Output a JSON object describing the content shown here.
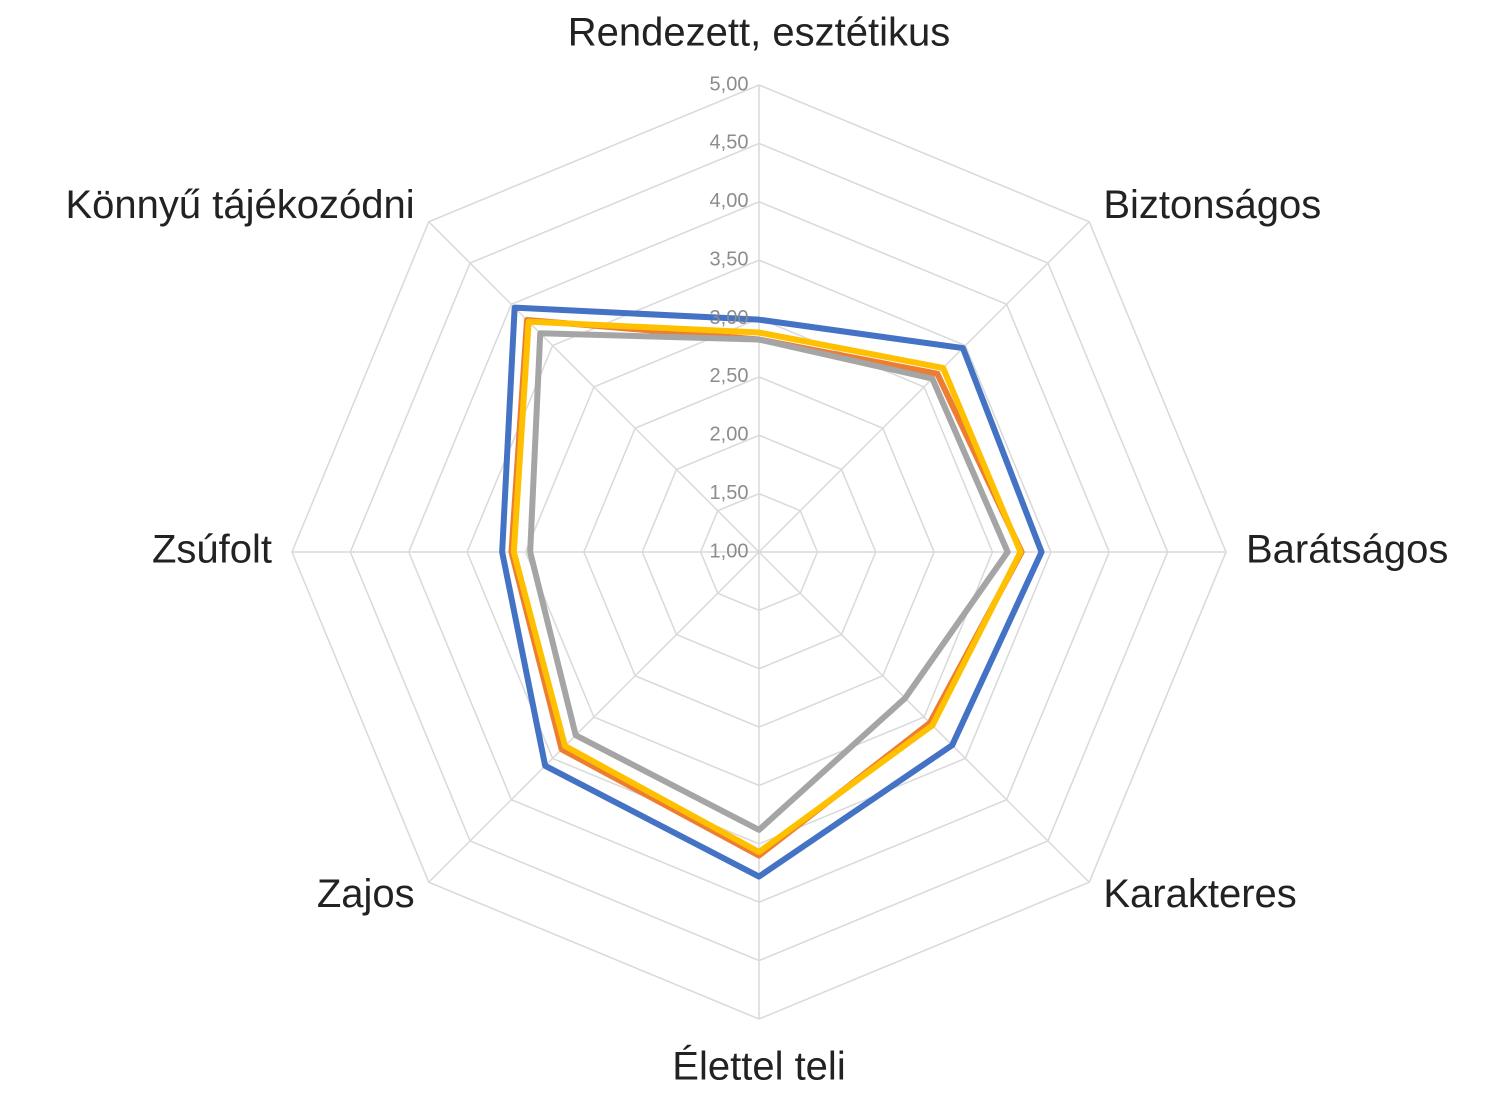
{
  "chart_data": {
    "type": "radar",
    "categories": [
      "Rendezett, esztétikus",
      "Biztonságos",
      "Barátságos",
      "Karakteres",
      "Élettel teli",
      "Zajos",
      "Zsúfolt",
      "Könnyű tájékozódni"
    ],
    "series": [
      {
        "color": "#4472c4",
        "values": [
          2.99,
          3.47,
          3.42,
          3.34,
          3.78,
          3.59,
          3.2,
          3.96
        ]
      },
      {
        "color": "#ed7d31",
        "values": [
          2.82,
          3.16,
          3.25,
          3.07,
          3.6,
          3.39,
          3.12,
          3.81
        ]
      },
      {
        "color": "#a5a5a5",
        "values": [
          2.82,
          3.1,
          3.13,
          2.77,
          3.38,
          3.22,
          2.96,
          3.65
        ]
      },
      {
        "color": "#ffc000",
        "values": [
          2.88,
          3.23,
          3.24,
          3.1,
          3.57,
          3.35,
          3.1,
          3.79
        ]
      }
    ],
    "ylim": [
      1,
      5
    ],
    "yticks": [
      {
        "value": 1,
        "label": "1,00"
      },
      {
        "value": 1.5,
        "label": "1,50"
      },
      {
        "value": 2,
        "label": "2,00"
      },
      {
        "value": 2.5,
        "label": "2,50"
      },
      {
        "value": 3,
        "label": "3,00"
      },
      {
        "value": 3.5,
        "label": "3,50"
      },
      {
        "value": 4,
        "label": "4,00"
      },
      {
        "value": 4.5,
        "label": "4,50"
      },
      {
        "value": 5,
        "label": "5,00"
      }
    ],
    "grid": true
  }
}
